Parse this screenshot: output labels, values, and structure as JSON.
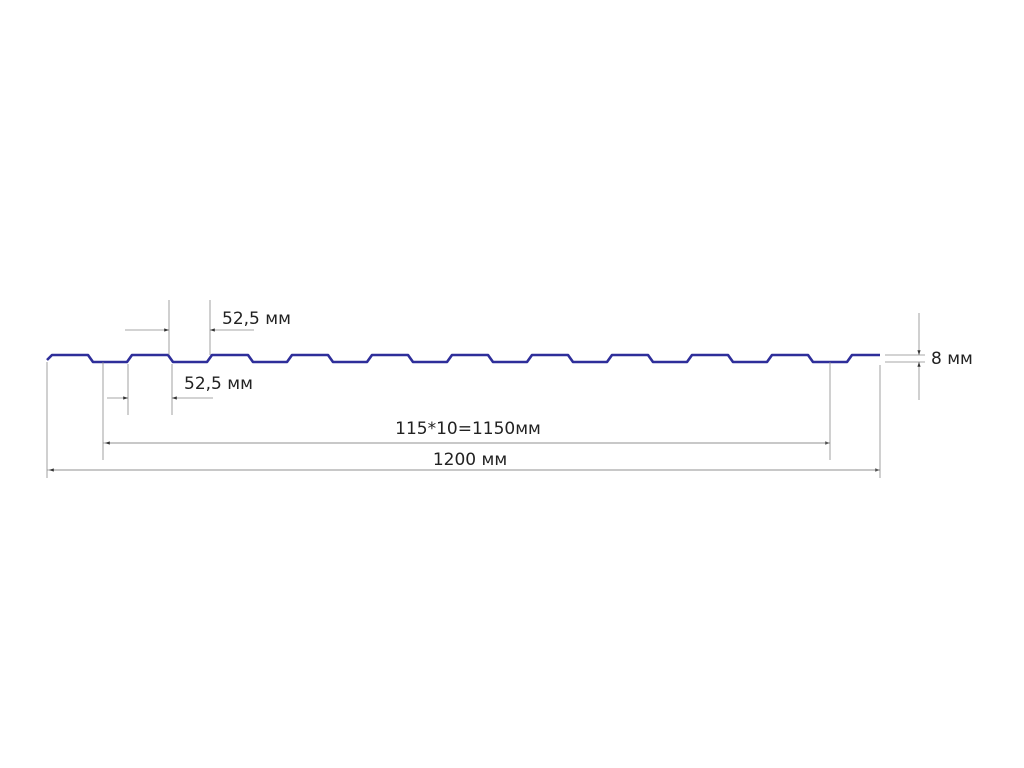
{
  "labels": {
    "pitch_top": "52,5 мм",
    "pitch_bottom": "52,5 мм",
    "height": "8 мм",
    "working_width": "115*10=1150мм",
    "total_width": "1200 мм"
  },
  "colors": {
    "profile": "#2e2e9a",
    "dimension": "#8a8a8a"
  }
}
